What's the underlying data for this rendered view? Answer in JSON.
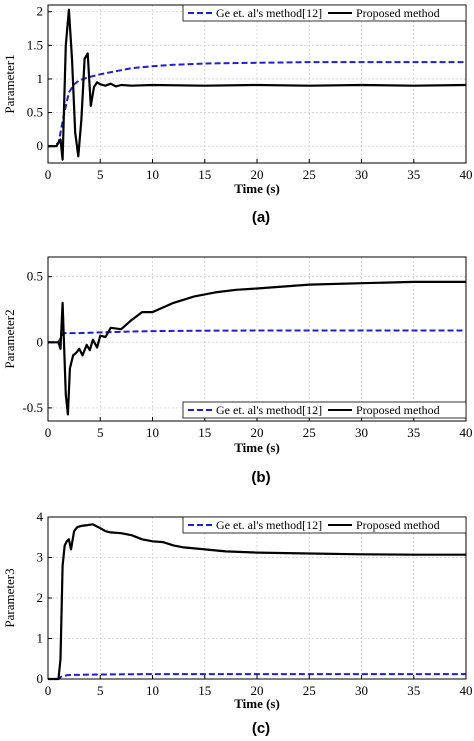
{
  "chart_data": [
    {
      "type": "line",
      "caption": "(a)",
      "xlabel": "Time (s)",
      "ylabel": "Parameter1",
      "xlim": [
        0,
        40
      ],
      "ylim": [
        -0.25,
        2.1
      ],
      "xticks": [
        0,
        5,
        10,
        15,
        20,
        25,
        30,
        35,
        40
      ],
      "yticks": [
        0,
        0.5,
        1,
        1.5,
        2
      ],
      "yticklabels": [
        "0",
        "0.5",
        "1",
        "1.5",
        "2"
      ],
      "grid": true,
      "legend_position": "top-right",
      "series": [
        {
          "name": "Ge et. al's method[12]",
          "color": "#1f1fd0",
          "dash": true,
          "x": [
            0,
            0.5,
            1,
            1.5,
            2,
            2.5,
            3,
            4,
            5,
            6,
            7,
            8,
            10,
            12,
            15,
            20,
            25,
            30,
            35,
            40
          ],
          "y": [
            0,
            0,
            0.05,
            0.45,
            0.8,
            0.92,
            0.98,
            1.03,
            1.07,
            1.1,
            1.13,
            1.16,
            1.19,
            1.21,
            1.23,
            1.24,
            1.25,
            1.25,
            1.25,
            1.25
          ]
        },
        {
          "name": "Proposed method",
          "color": "#000000",
          "dash": false,
          "x": [
            0,
            0.8,
            1.2,
            1.4,
            1.7,
            2.0,
            2.3,
            2.6,
            2.9,
            3.2,
            3.5,
            3.8,
            4.1,
            4.4,
            4.7,
            5,
            5.5,
            6,
            6.5,
            7,
            8,
            10,
            15,
            20,
            25,
            30,
            35,
            40
          ],
          "y": [
            0,
            0,
            0.1,
            -0.2,
            1.5,
            2.03,
            1.3,
            0.2,
            -0.15,
            0.4,
            1.3,
            1.38,
            0.6,
            0.88,
            0.95,
            0.92,
            0.9,
            0.93,
            0.89,
            0.91,
            0.9,
            0.91,
            0.9,
            0.91,
            0.9,
            0.91,
            0.9,
            0.91
          ]
        }
      ]
    },
    {
      "type": "line",
      "caption": "(b)",
      "xlabel": "Time (s)",
      "ylabel": "Parameter2",
      "xlim": [
        0,
        40
      ],
      "ylim": [
        -0.6,
        0.65
      ],
      "xticks": [
        0,
        5,
        10,
        15,
        20,
        25,
        30,
        35,
        40
      ],
      "yticks": [
        -0.5,
        0,
        0.5
      ],
      "yticklabels": [
        "-0.5",
        "0",
        "0.5"
      ],
      "grid": true,
      "legend_position": "bottom-right",
      "series": [
        {
          "name": "Ge et. al's method[12]",
          "color": "#1f1fd0",
          "dash": true,
          "x": [
            0,
            1,
            1.3,
            1.5,
            2,
            3,
            5,
            7,
            10,
            15,
            20,
            30,
            40
          ],
          "y": [
            0,
            0,
            0.05,
            0.07,
            0.07,
            0.07,
            0.075,
            0.08,
            0.085,
            0.088,
            0.09,
            0.09,
            0.09
          ],
          "note": ""
        },
        {
          "name": "Proposed method",
          "color": "#000000",
          "dash": false,
          "x": [
            0,
            1,
            1.2,
            1.4,
            1.7,
            1.9,
            2.1,
            2.4,
            2.7,
            3.0,
            3.3,
            3.7,
            4.0,
            4.3,
            4.7,
            5.0,
            5.5,
            6,
            7,
            8,
            9,
            10,
            12,
            14,
            16,
            18,
            20,
            25,
            30,
            35,
            40
          ],
          "y": [
            0,
            0,
            -0.05,
            0.3,
            -0.4,
            -0.55,
            -0.2,
            -0.1,
            -0.08,
            -0.05,
            -0.1,
            -0.02,
            -0.06,
            0.02,
            -0.04,
            0.05,
            0.04,
            0.11,
            0.1,
            0.17,
            0.23,
            0.23,
            0.3,
            0.35,
            0.38,
            0.4,
            0.41,
            0.44,
            0.45,
            0.46,
            0.46
          ]
        }
      ]
    },
    {
      "type": "line",
      "caption": "(c)",
      "xlabel": "",
      "ylabel": "Parameter3",
      "xlim": [
        0,
        40
      ],
      "ylim": [
        0,
        4
      ],
      "xticks": [
        0,
        5,
        10,
        15,
        20,
        25,
        30,
        35,
        40
      ],
      "yticks": [
        0,
        1,
        2,
        3,
        4
      ],
      "yticklabels": [
        "0",
        "1",
        "2",
        "3",
        "4"
      ],
      "grid": true,
      "legend_position": "top-right",
      "series": [
        {
          "name": "Ge et. al's method[12]",
          "color": "#1f1fd0",
          "dash": true,
          "x": [
            0,
            1,
            1.2,
            1.5,
            2,
            5,
            10,
            20,
            30,
            40
          ],
          "y": [
            0,
            0,
            0.05,
            0.08,
            0.1,
            0.11,
            0.12,
            0.12,
            0.12,
            0.12
          ]
        },
        {
          "name": "Proposed method",
          "color": "#000000",
          "dash": false,
          "x": [
            0,
            1.0,
            1.2,
            1.4,
            1.6,
            1.8,
            2.0,
            2.2,
            2.5,
            2.8,
            3.2,
            3.8,
            4.3,
            4.8,
            5.5,
            6,
            7,
            8,
            9,
            10,
            11,
            12,
            13,
            15,
            17,
            20,
            25,
            30,
            35,
            40
          ],
          "y": [
            0,
            0,
            0.5,
            2.8,
            3.3,
            3.4,
            3.45,
            3.2,
            3.65,
            3.75,
            3.78,
            3.8,
            3.82,
            3.75,
            3.65,
            3.62,
            3.6,
            3.55,
            3.45,
            3.4,
            3.38,
            3.3,
            3.25,
            3.2,
            3.15,
            3.12,
            3.1,
            3.08,
            3.07,
            3.07
          ]
        }
      ]
    }
  ],
  "page": {
    "x_axis_label_c": "Time (s)"
  }
}
